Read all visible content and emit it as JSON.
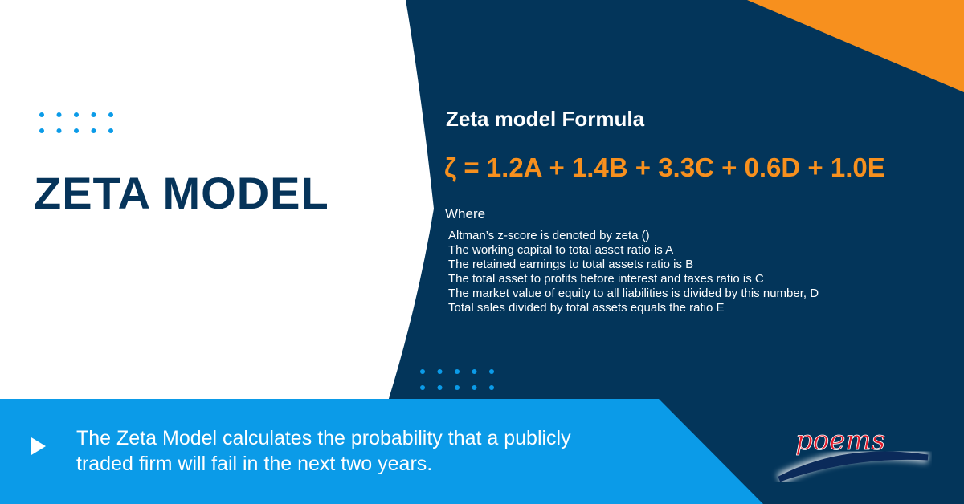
{
  "title": "ZETA MODEL",
  "formula_title": "Zeta model  Formula",
  "formula": "ζ = 1.2A + 1.4B + 3.3C + 0.6D + 1.0E",
  "where_label": "Where",
  "definitions": [
    "Altman’s z-score is denoted by zeta ()",
    "The working capital to total asset ratio is A",
    "The retained earnings to total assets ratio is B",
    "The total asset to profits before interest and taxes ratio is C",
    "The market value of equity to all liabilities is divided by this number, D",
    "Total sales divided by total assets equals the ratio E"
  ],
  "bottom_text": "The Zeta Model calculates the probability that a publicly traded firm will fail in the next two years.",
  "logo_text": "poems",
  "colors": {
    "navy": "#03355a",
    "orange": "#f7901e",
    "blue": "#0b9be8",
    "logo_red": "#e21b2a"
  },
  "icons": [
    "dot-grid-icon",
    "play-icon"
  ]
}
